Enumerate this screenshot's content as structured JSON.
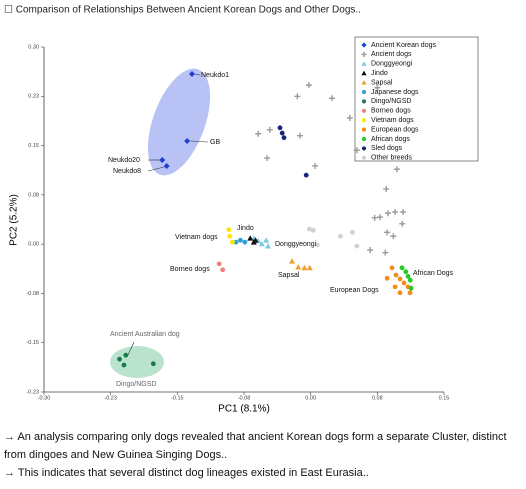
{
  "header": {
    "title": "☐ Comparison of Relationships Between Ancient Korean Dogs and Other Dogs.."
  },
  "chart_data": {
    "type": "scatter",
    "xlabel": "PC1 (8.1%)",
    "ylabel": "PC2 (5.2%)",
    "xlim": [
      -0.3,
      0.15
    ],
    "ylim": [
      -0.225,
      0.3
    ],
    "xticks": [
      {
        "value": -0.3,
        "label": "-0.30"
      },
      {
        "value": -0.225,
        "label": "-0.23"
      },
      {
        "value": -0.15,
        "label": "-0.15"
      },
      {
        "value": -0.075,
        "label": "-0.08"
      },
      {
        "value": 0,
        "label": "0.00"
      },
      {
        "value": 0.075,
        "label": "0.08"
      },
      {
        "value": 0.15,
        "label": "0.15"
      }
    ],
    "yticks": [
      {
        "value": 0.3,
        "label": "0.30"
      },
      {
        "value": 0.225,
        "label": "0.23"
      },
      {
        "value": 0.15,
        "label": "0.15"
      },
      {
        "value": 0.075,
        "label": "0.08"
      },
      {
        "value": 0,
        "label": "0.00"
      },
      {
        "value": -0.075,
        "label": "-0.08"
      },
      {
        "value": -0.15,
        "label": "-0.15"
      },
      {
        "value": -0.225,
        "label": "-0.23"
      }
    ],
    "legend": "upper right",
    "series": [
      {
        "name": "Ancient Korean dogs",
        "color": "#1f3fd6",
        "marker": "diamond",
        "x": [
          -0.1335,
          -0.139,
          -0.167,
          -0.162
        ],
        "values": [
          0.259,
          0.157,
          0.128,
          0.119
        ]
      },
      {
        "name": "Ancient dogs",
        "color": "#9a9a9a",
        "marker": "plus",
        "x": [
          -0.002,
          -0.015,
          0.024,
          -0.059,
          -0.046,
          -0.049,
          -0.012,
          0.005,
          0.044,
          0.052,
          0.075,
          0.097,
          0.085,
          0.072,
          0.078,
          0.087,
          0.095,
          0.103,
          0.093,
          0.086,
          0.067,
          0.084,
          0.104
        ],
        "values": [
          0.242,
          0.225,
          0.222,
          0.168,
          0.174,
          0.131,
          0.165,
          0.119,
          0.192,
          0.143,
          0.238,
          0.114,
          0.084,
          0.04,
          0.041,
          0.047,
          0.049,
          0.031,
          0.012,
          0.018,
          -0.009,
          -0.013,
          0.049
        ]
      },
      {
        "name": "Donggyeongi",
        "color": "#7ec8e3",
        "marker": "triangle",
        "x": [
          -0.059,
          -0.055,
          -0.05,
          -0.048,
          -0.064
        ],
        "values": [
          0.005,
          0.0005,
          0.006,
          -0.003,
          0.009
        ]
      },
      {
        "name": "Jindo",
        "color": "#111111",
        "marker": "triangle",
        "x": [
          -0.068,
          -0.064,
          -0.062
        ],
        "values": [
          0.009,
          0.003,
          0.006
        ]
      },
      {
        "name": "Sapsal",
        "color": "#f0a030",
        "marker": "triangle",
        "x": [
          -0.021,
          -0.014,
          -0.007,
          -0.001
        ],
        "values": [
          -0.026,
          -0.035,
          -0.036,
          -0.036
        ]
      },
      {
        "name": "Japanese dogs",
        "color": "#2e9fd8",
        "marker": "circle",
        "x": [
          -0.084,
          -0.079,
          -0.074
        ],
        "values": [
          0.003,
          0.006,
          0.003
        ]
      },
      {
        "name": "Dingo/NGSD",
        "color": "#1a7a4a",
        "marker": "circle",
        "x": [
          -0.215,
          -0.208,
          -0.21,
          -0.177
        ],
        "values": [
          -0.175,
          -0.169,
          -0.184,
          -0.182
        ]
      },
      {
        "name": "Borneo dogs",
        "color": "#f08080",
        "marker": "circle",
        "x": [
          -0.103,
          -0.099
        ],
        "values": [
          -0.03,
          -0.039
        ]
      },
      {
        "name": "Vietnam dogs",
        "color": "#ffe600",
        "marker": "circle",
        "x": [
          -0.091,
          -0.088,
          -0.092
        ],
        "values": [
          0.012,
          0.003,
          0.022
        ]
      },
      {
        "name": "European dogs",
        "color": "#f28c1c",
        "marker": "circle",
        "x": [
          0.0915,
          0.096,
          0.1005,
          0.105,
          0.1095,
          0.095,
          0.1005,
          0.1118,
          0.086
        ],
        "values": [
          -0.036,
          -0.047,
          -0.053,
          -0.059,
          -0.065,
          -0.065,
          -0.074,
          -0.074,
          -0.052
        ]
      },
      {
        "name": "African dogs",
        "color": "#22cc22",
        "marker": "circle",
        "x": [
          0.1028,
          0.107,
          0.112,
          0.113,
          0.1095
        ],
        "values": [
          -0.036,
          -0.042,
          -0.055,
          -0.067,
          -0.049
        ]
      },
      {
        "name": "Sled dogs",
        "color": "#1a237e",
        "marker": "circle",
        "x": [
          -0.0345,
          -0.032,
          -0.03,
          -0.005
        ],
        "values": [
          0.177,
          0.169,
          0.162,
          0.105
        ]
      },
      {
        "name": "Other breeds",
        "color": "#d0d0d0",
        "marker": "circle",
        "x": [
          -0.0015,
          0.003,
          0.0335,
          0.047,
          0.0075,
          0.052
        ],
        "values": [
          0.023,
          0.021,
          0.012,
          0.018,
          -0.001,
          -0.003
        ]
      }
    ],
    "annotations": [
      "Neukdo1",
      "GB",
      "Neukdo20",
      "Neukdo8",
      "Jindo",
      "Vietnam dogs",
      "Donggyeongi",
      "Borneo dogs",
      "Sapsal",
      "African Dogs",
      "European Dogs",
      "Ancient Australian dog",
      "Dingo/NGSD"
    ]
  },
  "notes": [
    "→ An analysis comparing only dogs revealed that ancient Korean dogs form a separate Cluster, distinct from dingoes and New Guinea Singing Dogs..",
    "→ This indicates that several distinct dog lineages existed in East Eurasia.."
  ]
}
